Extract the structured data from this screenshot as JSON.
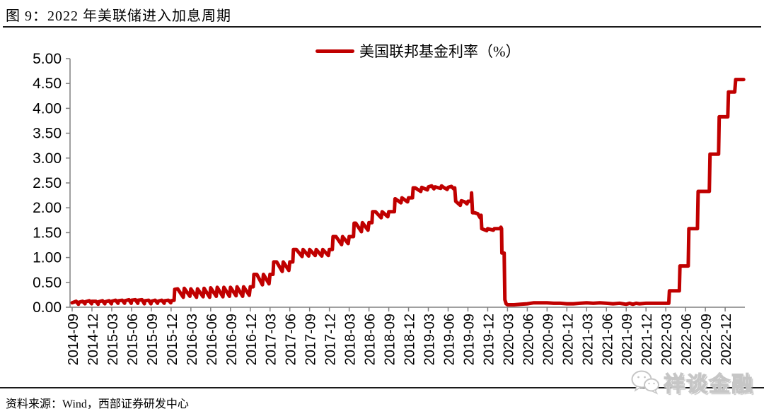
{
  "page": {
    "title": "图 9：2022 年美联储进入加息周期",
    "source": "资料来源：Wind，西部证券研发中心",
    "watermark": "祥谈金融"
  },
  "colors": {
    "series": "#C00000",
    "axis": "#808080",
    "tick_text": "#000000",
    "watermark": "#C6C6C6"
  },
  "chart_data": {
    "type": "line",
    "title": "2022 年美联储进入加息周期",
    "legend": "美国联邦基金利率（%）",
    "legend_position": "top",
    "grid": false,
    "xlabel": "",
    "ylabel": "",
    "ylim": [
      0,
      5
    ],
    "y_tick_step": 0.5,
    "y_tick_labels": [
      "0.00",
      "0.50",
      "1.00",
      "1.50",
      "2.00",
      "2.50",
      "3.00",
      "3.50",
      "4.00",
      "4.50",
      "5.00"
    ],
    "x_unit": "months since 2014-09",
    "x_tick_interval_months": 3,
    "x_range_months": [
      0,
      102
    ],
    "categories": [
      "2014-09",
      "2014-12",
      "2015-03",
      "2015-06",
      "2015-09",
      "2015-12",
      "2016-03",
      "2016-06",
      "2016-09",
      "2016-12",
      "2017-03",
      "2017-06",
      "2017-09",
      "2017-12",
      "2018-03",
      "2018-06",
      "2018-09",
      "2018-12",
      "2019-03",
      "2019-06",
      "2019-09",
      "2019-12",
      "2020-03",
      "2020-06",
      "2020-09",
      "2020-12",
      "2021-03",
      "2021-06",
      "2021-09",
      "2021-12",
      "2022-03",
      "2022-06",
      "2022-09",
      "2022-12"
    ],
    "series": [
      {
        "name": "美国联邦基金利率（%）",
        "color": "#C00000",
        "points": [
          [
            0,
            0.09
          ],
          [
            0.6,
            0.12
          ],
          [
            0.95,
            0.06
          ],
          [
            1,
            0.1
          ],
          [
            1.6,
            0.12
          ],
          [
            1.95,
            0.07
          ],
          [
            2,
            0.11
          ],
          [
            2.6,
            0.13
          ],
          [
            2.95,
            0.07
          ],
          [
            3,
            0.12
          ],
          [
            3.6,
            0.12
          ],
          [
            3.95,
            0.06
          ],
          [
            4,
            0.11
          ],
          [
            4.6,
            0.13
          ],
          [
            4.95,
            0.07
          ],
          [
            5,
            0.11
          ],
          [
            5.6,
            0.13
          ],
          [
            5.95,
            0.07
          ],
          [
            6,
            0.12
          ],
          [
            6.6,
            0.14
          ],
          [
            6.95,
            0.08
          ],
          [
            7,
            0.13
          ],
          [
            7.6,
            0.14
          ],
          [
            7.95,
            0.08
          ],
          [
            8,
            0.13
          ],
          [
            8.6,
            0.15
          ],
          [
            8.95,
            0.08
          ],
          [
            9,
            0.14
          ],
          [
            9.6,
            0.15
          ],
          [
            9.95,
            0.08
          ],
          [
            10,
            0.14
          ],
          [
            10.6,
            0.15
          ],
          [
            10.95,
            0.07
          ],
          [
            11,
            0.13
          ],
          [
            11.6,
            0.14
          ],
          [
            11.95,
            0.07
          ],
          [
            12,
            0.12
          ],
          [
            12.6,
            0.14
          ],
          [
            12.95,
            0.08
          ],
          [
            13,
            0.12
          ],
          [
            13.6,
            0.14
          ],
          [
            13.95,
            0.08
          ],
          [
            14,
            0.13
          ],
          [
            14.6,
            0.14
          ],
          [
            14.95,
            0.09
          ],
          [
            15,
            0.13
          ],
          [
            15.45,
            0.14
          ],
          [
            15.55,
            0.36
          ],
          [
            16,
            0.37
          ],
          [
            16.85,
            0.2
          ],
          [
            17,
            0.38
          ],
          [
            17.85,
            0.22
          ],
          [
            18,
            0.37
          ],
          [
            18.85,
            0.2
          ],
          [
            19,
            0.37
          ],
          [
            19.85,
            0.21
          ],
          [
            20,
            0.38
          ],
          [
            20.85,
            0.2
          ],
          [
            21,
            0.39
          ],
          [
            21.85,
            0.22
          ],
          [
            22,
            0.4
          ],
          [
            22.85,
            0.21
          ],
          [
            23,
            0.4
          ],
          [
            23.85,
            0.22
          ],
          [
            24,
            0.4
          ],
          [
            24.85,
            0.23
          ],
          [
            25,
            0.41
          ],
          [
            25.85,
            0.22
          ],
          [
            26,
            0.41
          ],
          [
            26.85,
            0.24
          ],
          [
            27,
            0.41
          ],
          [
            27.45,
            0.41
          ],
          [
            27.55,
            0.66
          ],
          [
            28,
            0.66
          ],
          [
            28.85,
            0.45
          ],
          [
            29,
            0.66
          ],
          [
            29.85,
            0.47
          ],
          [
            30,
            0.66
          ],
          [
            30.45,
            0.66
          ],
          [
            30.55,
            0.91
          ],
          [
            31,
            0.91
          ],
          [
            31.85,
            0.72
          ],
          [
            32,
            0.91
          ],
          [
            32.85,
            0.74
          ],
          [
            33,
            0.91
          ],
          [
            33.45,
            0.91
          ],
          [
            33.55,
            1.16
          ],
          [
            34,
            1.16
          ],
          [
            34.85,
            1.02
          ],
          [
            35,
            1.16
          ],
          [
            35.85,
            1.03
          ],
          [
            36,
            1.16
          ],
          [
            36.85,
            1.04
          ],
          [
            37,
            1.16
          ],
          [
            37.85,
            1.03
          ],
          [
            38,
            1.16
          ],
          [
            38.85,
            1.04
          ],
          [
            39,
            1.16
          ],
          [
            39.45,
            1.16
          ],
          [
            39.55,
            1.42
          ],
          [
            40,
            1.42
          ],
          [
            40.85,
            1.26
          ],
          [
            41,
            1.42
          ],
          [
            41.85,
            1.28
          ],
          [
            42,
            1.42
          ],
          [
            42.65,
            1.42
          ],
          [
            42.75,
            1.69
          ],
          [
            43,
            1.69
          ],
          [
            43.85,
            1.52
          ],
          [
            44,
            1.7
          ],
          [
            44.85,
            1.55
          ],
          [
            45,
            1.7
          ],
          [
            45.45,
            1.7
          ],
          [
            45.55,
            1.92
          ],
          [
            46,
            1.92
          ],
          [
            46.85,
            1.8
          ],
          [
            47,
            1.92
          ],
          [
            47.85,
            1.82
          ],
          [
            48,
            1.92
          ],
          [
            48.85,
            1.92
          ],
          [
            48.95,
            2.18
          ],
          [
            49,
            2.18
          ],
          [
            49.85,
            2.1
          ],
          [
            50,
            2.2
          ],
          [
            50.85,
            2.12
          ],
          [
            51,
            2.2
          ],
          [
            51.6,
            2.2
          ],
          [
            51.7,
            2.4
          ],
          [
            52,
            2.4
          ],
          [
            52.85,
            2.33
          ],
          [
            53,
            2.41
          ],
          [
            53.85,
            2.36
          ],
          [
            54,
            2.42
          ],
          [
            54.5,
            2.44
          ],
          [
            54.85,
            2.38
          ],
          [
            55,
            2.42
          ],
          [
            55.85,
            2.39
          ],
          [
            56,
            2.44
          ],
          [
            56.3,
            2.41
          ],
          [
            56.85,
            2.37
          ],
          [
            57,
            2.41
          ],
          [
            57.5,
            2.43
          ],
          [
            57.85,
            2.38
          ],
          [
            58,
            2.4
          ],
          [
            58.15,
            2.13
          ],
          [
            58.85,
            2.05
          ],
          [
            59,
            2.14
          ],
          [
            59.5,
            2.12
          ],
          [
            59.85,
            2.08
          ],
          [
            60,
            2.13
          ],
          [
            60.5,
            2.13
          ],
          [
            60.55,
            2.3
          ],
          [
            60.7,
            1.9
          ],
          [
            61,
            1.9
          ],
          [
            61.5,
            1.88
          ],
          [
            61.85,
            1.8
          ],
          [
            62,
            1.85
          ],
          [
            62.1,
            1.58
          ],
          [
            62.85,
            1.54
          ],
          [
            63,
            1.58
          ],
          [
            63.85,
            1.55
          ],
          [
            64,
            1.58
          ],
          [
            64.85,
            1.58
          ],
          [
            65.0,
            1.61
          ],
          [
            65.1,
            1.58
          ],
          [
            65.15,
            1.09
          ],
          [
            65.5,
            1.09
          ],
          [
            65.6,
            0.15
          ],
          [
            65.8,
            0.07
          ],
          [
            66,
            0.05
          ],
          [
            66.5,
            0.05
          ],
          [
            67,
            0.05
          ],
          [
            68,
            0.06
          ],
          [
            69,
            0.07
          ],
          [
            70,
            0.09
          ],
          [
            71,
            0.09
          ],
          [
            72,
            0.09
          ],
          [
            73,
            0.08
          ],
          [
            74,
            0.08
          ],
          [
            75,
            0.07
          ],
          [
            76,
            0.07
          ],
          [
            77,
            0.08
          ],
          [
            78,
            0.09
          ],
          [
            79,
            0.08
          ],
          [
            80,
            0.09
          ],
          [
            81,
            0.08
          ],
          [
            82,
            0.07
          ],
          [
            83,
            0.08
          ],
          [
            84,
            0.06
          ],
          [
            84.5,
            0.08
          ],
          [
            85,
            0.06
          ],
          [
            85.5,
            0.08
          ],
          [
            86,
            0.07
          ],
          [
            87,
            0.08
          ],
          [
            88,
            0.08
          ],
          [
            89,
            0.08
          ],
          [
            90,
            0.08
          ],
          [
            90.45,
            0.08
          ],
          [
            90.55,
            0.33
          ],
          [
            91,
            0.33
          ],
          [
            92.05,
            0.33
          ],
          [
            92.15,
            0.83
          ],
          [
            93,
            0.83
          ],
          [
            93.4,
            0.83
          ],
          [
            93.5,
            1.58
          ],
          [
            94,
            1.58
          ],
          [
            94.8,
            1.58
          ],
          [
            94.9,
            2.33
          ],
          [
            95,
            2.33
          ],
          [
            96.6,
            2.33
          ],
          [
            96.7,
            3.08
          ],
          [
            97,
            3.08
          ],
          [
            98.0,
            3.08
          ],
          [
            98.1,
            3.83
          ],
          [
            99,
            3.83
          ],
          [
            99.4,
            3.83
          ],
          [
            99.5,
            4.33
          ],
          [
            100,
            4.33
          ],
          [
            100.45,
            4.33
          ],
          [
            100.6,
            4.58
          ],
          [
            101.8,
            4.58
          ]
        ]
      }
    ]
  }
}
